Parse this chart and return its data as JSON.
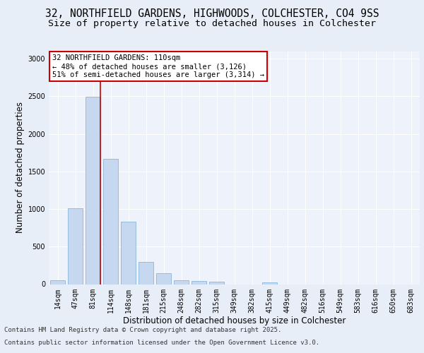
{
  "title_line1": "32, NORTHFIELD GARDENS, HIGHWOODS, COLCHESTER, CO4 9SS",
  "title_line2": "Size of property relative to detached houses in Colchester",
  "xlabel": "Distribution of detached houses by size in Colchester",
  "ylabel": "Number of detached properties",
  "categories": [
    "14sqm",
    "47sqm",
    "81sqm",
    "114sqm",
    "148sqm",
    "181sqm",
    "215sqm",
    "248sqm",
    "282sqm",
    "315sqm",
    "349sqm",
    "382sqm",
    "415sqm",
    "449sqm",
    "482sqm",
    "516sqm",
    "549sqm",
    "583sqm",
    "616sqm",
    "650sqm",
    "683sqm"
  ],
  "values": [
    55,
    1010,
    2490,
    1670,
    830,
    300,
    150,
    55,
    45,
    30,
    0,
    0,
    20,
    0,
    0,
    0,
    0,
    0,
    0,
    0,
    0
  ],
  "bar_color": "#c5d8f0",
  "bar_edge_color": "#7aadd4",
  "vline_color": "#cc0000",
  "annotation_text": "32 NORTHFIELD GARDENS: 110sqm\n← 48% of detached houses are smaller (3,126)\n51% of semi-detached houses are larger (3,314) →",
  "annotation_box_color": "#ffffff",
  "annotation_box_edge": "#cc0000",
  "ylim": [
    0,
    3100
  ],
  "yticks": [
    0,
    500,
    1000,
    1500,
    2000,
    2500,
    3000
  ],
  "bg_color": "#e8eef8",
  "plot_bg_color": "#eef2fb",
  "footer_line1": "Contains HM Land Registry data © Crown copyright and database right 2025.",
  "footer_line2": "Contains public sector information licensed under the Open Government Licence v3.0.",
  "title_fontsize": 10.5,
  "subtitle_fontsize": 9.5,
  "axis_label_fontsize": 8.5,
  "tick_fontsize": 7,
  "annotation_fontsize": 7.5,
  "footer_fontsize": 6.5
}
